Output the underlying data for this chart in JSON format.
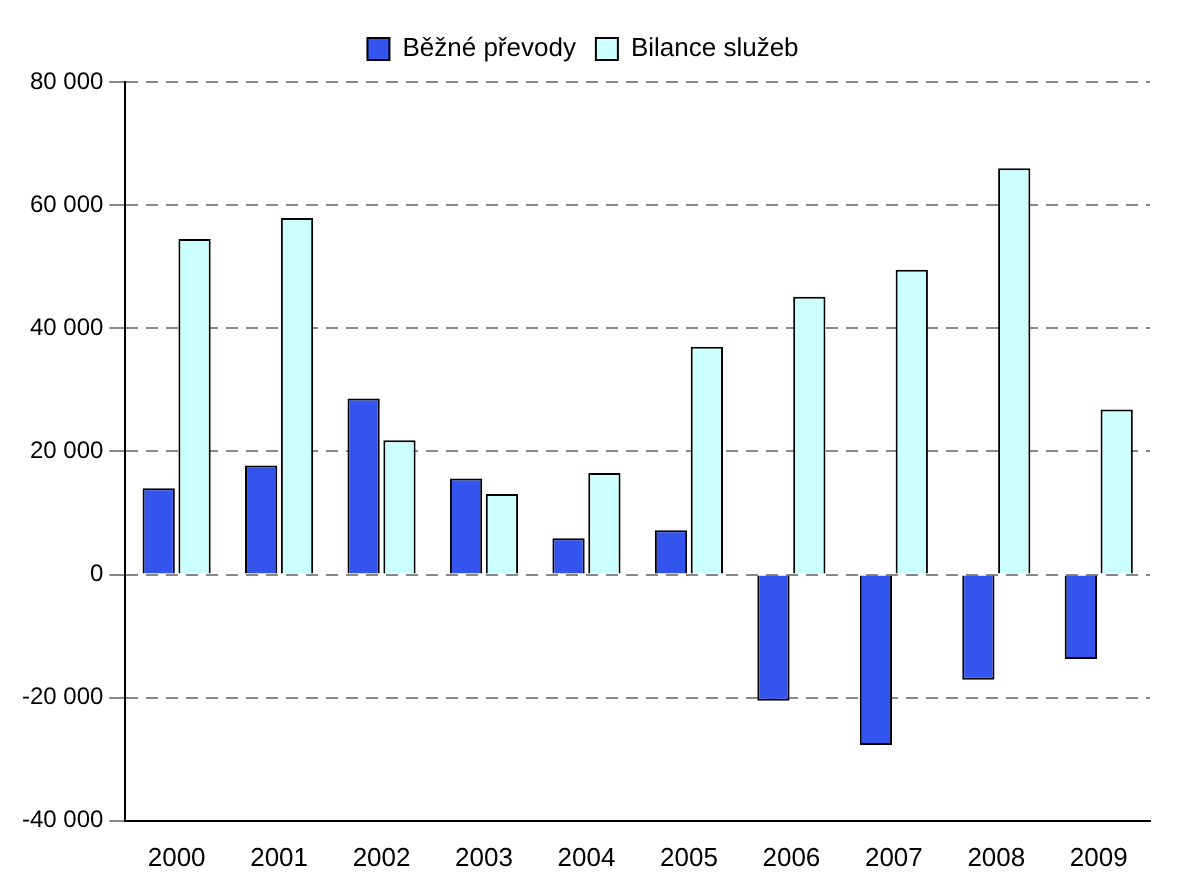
{
  "chart_data": {
    "type": "bar",
    "categories": [
      "2000",
      "2001",
      "2002",
      "2003",
      "2004",
      "2005",
      "2006",
      "2007",
      "2008",
      "2009"
    ],
    "series": [
      {
        "name": "Běžné převody",
        "color": "#3355ee",
        "values": [
          14000,
          17700,
          28600,
          15600,
          5900,
          7200,
          -20500,
          -27700,
          -17100,
          -13700
        ]
      },
      {
        "name": "Bilance služeb",
        "color": "#ccffff",
        "values": [
          54500,
          57900,
          21800,
          13100,
          16500,
          37000,
          45100,
          49500,
          66000,
          26800
        ]
      }
    ],
    "ylim": [
      -40000,
      80000
    ],
    "yticks": [
      {
        "value": -40000,
        "label": "-40 000"
      },
      {
        "value": -20000,
        "label": "-20 000"
      },
      {
        "value": 0,
        "label": "0"
      },
      {
        "value": 20000,
        "label": "20 000"
      },
      {
        "value": 40000,
        "label": "40 000"
      },
      {
        "value": 60000,
        "label": "60 000"
      },
      {
        "value": 80000,
        "label": "80 000"
      }
    ],
    "grid": "y",
    "legend": "top"
  }
}
